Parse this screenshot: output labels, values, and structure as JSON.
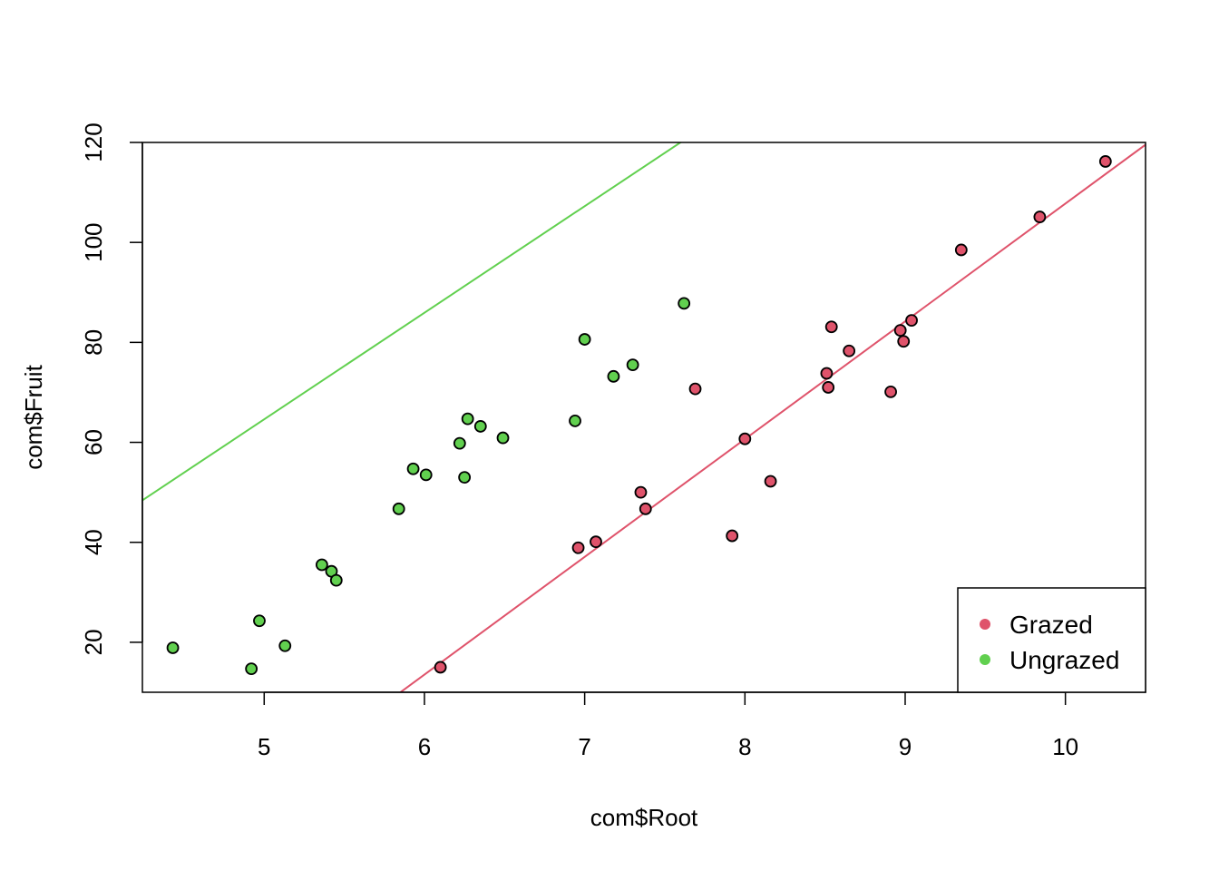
{
  "chart_data": {
    "type": "scatter",
    "title": "",
    "xlabel": "com$Root",
    "ylabel": "com$Fruit",
    "xlim": [
      4.24,
      10.5
    ],
    "ylim": [
      10,
      120
    ],
    "x_ticks": [
      5,
      6,
      7,
      8,
      9,
      10
    ],
    "y_ticks": [
      20,
      40,
      60,
      80,
      100,
      120
    ],
    "grid": false,
    "legend": {
      "position": "bottom-right"
    },
    "series": [
      {
        "name": "Grazed",
        "color": "#DF536B",
        "points": [
          [
            6.1,
            15.0
          ],
          [
            6.96,
            38.9
          ],
          [
            7.07,
            40.1
          ],
          [
            7.35,
            50.0
          ],
          [
            7.38,
            46.7
          ],
          [
            7.69,
            70.7
          ],
          [
            7.92,
            41.3
          ],
          [
            8.0,
            60.7
          ],
          [
            8.16,
            52.2
          ],
          [
            8.51,
            73.8
          ],
          [
            8.52,
            71.0
          ],
          [
            8.54,
            83.1
          ],
          [
            8.65,
            78.3
          ],
          [
            8.91,
            70.1
          ],
          [
            8.97,
            82.4
          ],
          [
            8.99,
            80.2
          ],
          [
            9.04,
            84.4
          ],
          [
            9.35,
            98.5
          ],
          [
            9.84,
            105.1
          ],
          [
            10.25,
            116.2
          ]
        ],
        "fit": {
          "intercept": -127.83,
          "slope": 23.56
        }
      },
      {
        "name": "Ungrazed",
        "color": "#61D04F",
        "points": [
          [
            4.43,
            18.9
          ],
          [
            4.92,
            14.7
          ],
          [
            4.97,
            24.3
          ],
          [
            5.13,
            19.3
          ],
          [
            5.36,
            35.5
          ],
          [
            5.42,
            34.2
          ],
          [
            5.45,
            32.4
          ],
          [
            5.84,
            46.7
          ],
          [
            5.93,
            54.7
          ],
          [
            6.01,
            53.5
          ],
          [
            6.22,
            59.8
          ],
          [
            6.25,
            53.0
          ],
          [
            6.27,
            64.7
          ],
          [
            6.35,
            63.2
          ],
          [
            6.49,
            60.9
          ],
          [
            6.94,
            64.3
          ],
          [
            7.0,
            80.6
          ],
          [
            7.18,
            73.2
          ],
          [
            7.3,
            75.5
          ],
          [
            7.62,
            87.8
          ]
        ],
        "fit": {
          "intercept": -41.99,
          "slope": 21.32
        }
      }
    ]
  }
}
